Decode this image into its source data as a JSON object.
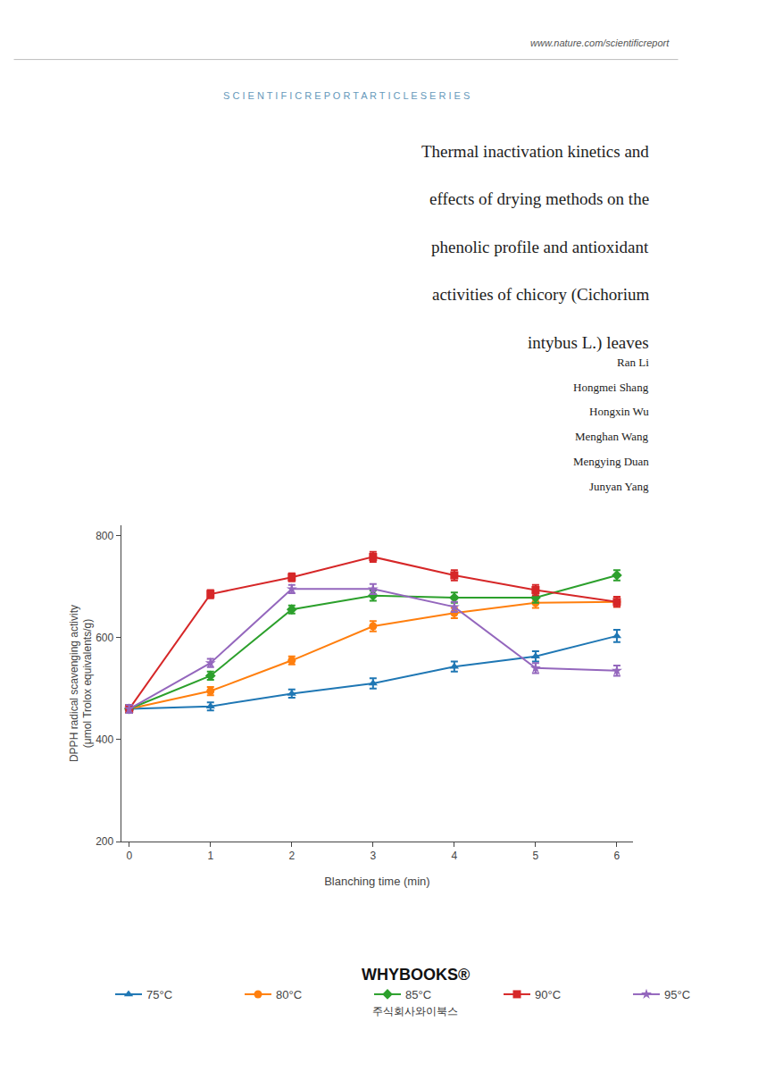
{
  "chart_data": {
    "type": "line",
    "title": "Thermal inactivation kinetics and\neffects of drying methods on the\nphenolic profile and antioxidant\nactivities of chicory (Cichorium\nintybus L.) leaves",
    "subtitle": "Ran Li\nHongmei Shang\nHongxin Wu\nMenghan Wang\nMengying Duan\nJunyan Yang",
    "annotations": [
      "www.nature.com/scientificreport",
      "S C I E N T I F I C R E P O R T A R T I C L E S E R I E S",
      "WHYBOOKS®",
      "주식회사와이북스"
    ],
    "xlabel": "Blanching time (min)",
    "ylabel": "DPPH radical scavenging activity\n(μmol Trolox equivalents/g)",
    "x": [
      0,
      1,
      2,
      3,
      4,
      5,
      6
    ],
    "series": [
      {
        "name": "75°C",
        "marker": "triangle",
        "values": [
          460,
          465,
          490,
          510,
          543,
          563,
          603
        ],
        "yerr": [
          8,
          8,
          8,
          10,
          10,
          10,
          12
        ]
      },
      {
        "name": "80°C",
        "marker": "circle",
        "values": [
          460,
          495,
          555,
          622,
          648,
          668,
          670
        ],
        "yerr": [
          8,
          8,
          8,
          10,
          10,
          10,
          10
        ]
      },
      {
        "name": "85°C",
        "marker": "diamond",
        "values": [
          460,
          525,
          655,
          682,
          678,
          678,
          722
        ],
        "yerr": [
          8,
          8,
          8,
          10,
          10,
          10,
          10
        ]
      },
      {
        "name": "90°C",
        "marker": "square",
        "values": [
          460,
          685,
          718,
          758,
          722,
          693,
          670
        ],
        "yerr": [
          8,
          8,
          8,
          10,
          10,
          10,
          10
        ]
      },
      {
        "name": "95°C",
        "marker": "star",
        "values": [
          460,
          550,
          695,
          695,
          660,
          540,
          535
        ],
        "yerr": [
          8,
          8,
          8,
          10,
          10,
          10,
          10
        ]
      }
    ],
    "xlim": [
      -0.1,
      6.2
    ],
    "xticks": [
      0,
      1,
      2,
      3,
      4,
      5,
      6
    ],
    "ylim": [
      200,
      820
    ],
    "yticks": [
      200,
      400,
      600,
      800
    ],
    "grid": false,
    "legend": "lower left"
  }
}
